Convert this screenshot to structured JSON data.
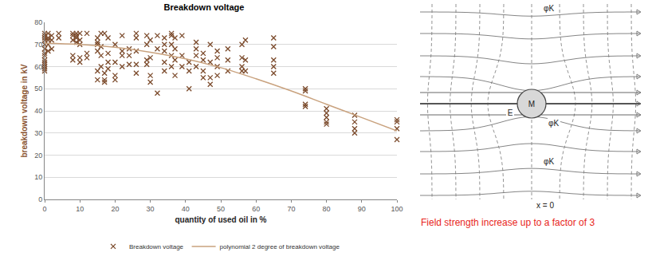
{
  "chart_data": {
    "type": "scatter",
    "title": "Breakdown voltage",
    "x_label": "quantity of used oil in %",
    "y_label": "breakdown voltage in kV",
    "xlim": [
      0,
      100
    ],
    "xticks": [
      0,
      10,
      20,
      30,
      40,
      50,
      60,
      70,
      80,
      90,
      100
    ],
    "ylim": [
      0,
      80
    ],
    "yticks": [
      0,
      10,
      20,
      30,
      40,
      50,
      60,
      70,
      80
    ],
    "grid": true,
    "legend": "bottom",
    "series": [
      {
        "name": "Breakdown voltage",
        "type": "scatter",
        "marker": "x",
        "color": "#7b4a2b",
        "x": [
          0,
          0,
          0,
          0,
          0,
          0,
          0,
          0,
          0,
          0,
          0,
          0,
          0,
          0,
          1,
          1,
          1,
          1,
          1,
          2,
          2,
          2,
          4,
          4,
          8,
          8,
          8,
          8,
          8,
          9,
          9,
          9,
          9,
          10,
          10,
          10,
          10,
          10,
          12,
          12,
          12,
          15,
          15,
          15,
          15,
          15,
          15,
          16,
          16,
          16,
          16,
          17,
          17,
          17,
          17,
          18,
          18,
          18,
          18,
          20,
          20,
          20,
          20,
          22,
          22,
          22,
          22,
          24,
          24,
          24,
          26,
          26,
          26,
          26,
          26,
          29,
          29,
          29,
          29,
          30,
          30,
          30,
          30,
          32,
          32,
          32,
          34,
          34,
          34,
          34,
          34,
          36,
          36,
          36,
          36,
          36,
          37,
          37,
          37,
          37,
          39,
          39,
          39,
          41,
          41,
          41,
          43,
          43,
          43,
          43,
          45,
          45,
          45,
          45,
          47,
          47,
          47,
          47,
          49,
          49,
          49,
          49,
          52,
          52,
          52,
          56,
          56,
          56,
          56,
          57,
          57,
          57,
          65,
          65,
          65,
          65,
          65,
          74,
          74,
          74,
          74,
          80,
          80,
          80,
          80,
          80,
          88,
          88,
          88,
          88,
          100,
          100,
          100,
          100
        ],
        "values": [
          75,
          74,
          73,
          72,
          70,
          68,
          66,
          65,
          63,
          62,
          61,
          60,
          59,
          58,
          75,
          73,
          72,
          70,
          67,
          74,
          72,
          68,
          75,
          73,
          75,
          74,
          72,
          65,
          63,
          75,
          74,
          73,
          71,
          75,
          72,
          70,
          64,
          62,
          75,
          66,
          64,
          73,
          71,
          70,
          67,
          58,
          54,
          75,
          69,
          65,
          60,
          75,
          57,
          54,
          53,
          73,
          66,
          62,
          59,
          70,
          62,
          56,
          54,
          74,
          67,
          65,
          60,
          68,
          65,
          61,
          75,
          73,
          67,
          61,
          57,
          74,
          70,
          63,
          61,
          72,
          64,
          56,
          53,
          74,
          68,
          48,
          73,
          70,
          67,
          62,
          58,
          75,
          74,
          70,
          65,
          60,
          73,
          68,
          63,
          56,
          74,
          65,
          60,
          62,
          58,
          50,
          71,
          68,
          65,
          60,
          66,
          63,
          58,
          55,
          70,
          62,
          55,
          52,
          67,
          64,
          60,
          56,
          68,
          63,
          58,
          70,
          64,
          60,
          58,
          72,
          63,
          58,
          73,
          69,
          63,
          60,
          57,
          50,
          49,
          43,
          42,
          41,
          39,
          37,
          35,
          34,
          38,
          35,
          32,
          30,
          36,
          35,
          32,
          27
        ]
      },
      {
        "name": "polynomial 2 degree of breakdown voltage",
        "type": "line",
        "line_style": "solid",
        "color": "#c9a27e",
        "x": [
          0,
          10,
          20,
          30,
          40,
          50,
          60,
          70,
          80,
          90,
          100
        ],
        "values": [
          70.5,
          70,
          68.7,
          66.5,
          63.5,
          59.5,
          54.5,
          49,
          43,
          37,
          31
        ]
      }
    ]
  },
  "diagram": {
    "labels": {
      "potential": "φK",
      "center": "M",
      "field": "E",
      "axis": "x = 0"
    },
    "caption": "Field strength increase up to a factor of 3"
  }
}
